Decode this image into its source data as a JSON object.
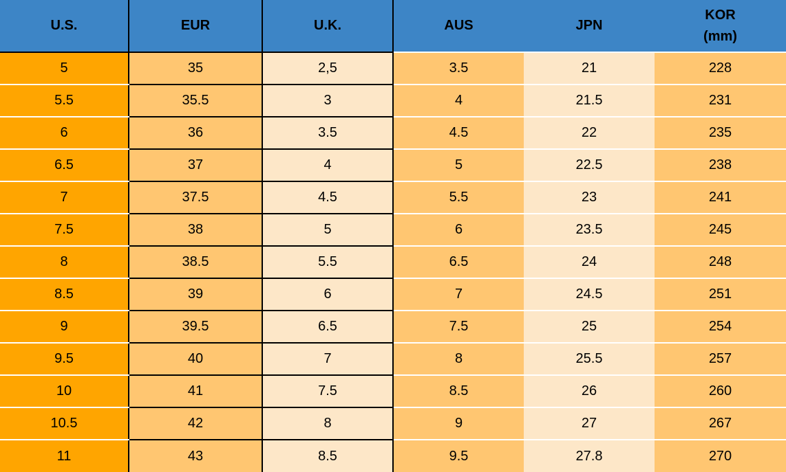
{
  "chart_data": {
    "type": "table",
    "headers": [
      {
        "id": "us",
        "label": "U.S."
      },
      {
        "id": "eur",
        "label": "EUR"
      },
      {
        "id": "uk",
        "label": "U.K."
      },
      {
        "id": "aus",
        "label": "AUS"
      },
      {
        "id": "jpn",
        "label": "JPN"
      },
      {
        "id": "kor",
        "label": "KOR",
        "sublabel": "(mm)"
      }
    ],
    "rows": [
      [
        "5",
        "35",
        "2,5",
        "3.5",
        "21",
        "228"
      ],
      [
        "5.5",
        "35.5",
        "3",
        "4",
        "21.5",
        "231"
      ],
      [
        "6",
        "36",
        "3.5",
        "4.5",
        "22",
        "235"
      ],
      [
        "6.5",
        "37",
        "4",
        "5",
        "22.5",
        "238"
      ],
      [
        "7",
        "37.5",
        "4.5",
        "5.5",
        "23",
        "241"
      ],
      [
        "7.5",
        "38",
        "5",
        "6",
        "23.5",
        "245"
      ],
      [
        "8",
        "38.5",
        "5.5",
        "6.5",
        "24",
        "248"
      ],
      [
        "8.5",
        "39",
        "6",
        "7",
        "24.5",
        "251"
      ],
      [
        "9",
        "39.5",
        "6.5",
        "7.5",
        "25",
        "254"
      ],
      [
        "9.5",
        "40",
        "7",
        "8",
        "25.5",
        "257"
      ],
      [
        "10",
        "41",
        "7.5",
        "8.5",
        "26",
        "260"
      ],
      [
        "10.5",
        "42",
        "8",
        "9",
        "27",
        "267"
      ],
      [
        "11",
        "43",
        "8.5",
        "9.5",
        "27.8",
        "270"
      ]
    ]
  },
  "colors": {
    "header_bg": "#3D85C6",
    "header_text": "#000000",
    "col_us_bg": "#FFA500",
    "col_light_orange_bg": "#FFC671",
    "col_cream_bg": "#FDE7C8",
    "row_separator": "#FFFFFF",
    "grid_border": "#000000",
    "cell_text": "#000000"
  }
}
